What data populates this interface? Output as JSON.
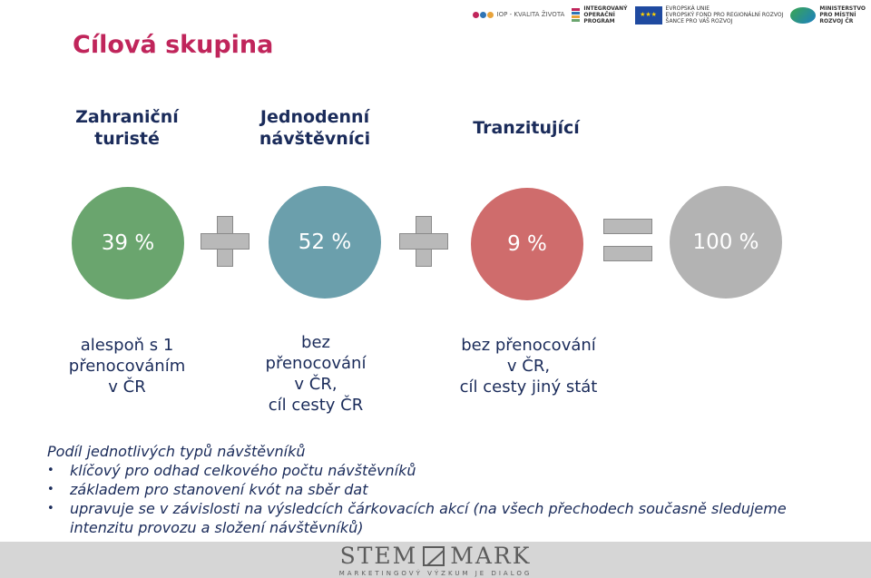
{
  "header_logos": {
    "iop": "IOP - KVALITA ŽIVOTA",
    "iroi": "INTEGROVANÝ\nOPERAČNÍ\nPROGRAM",
    "eu": "EVROPSKÁ UNIE\nEVROPSKÝ FOND PRO REGIONÁLNÍ ROZVOJ\nŠANCE PRO VÁŠ ROZVOJ",
    "mmr": "MINISTERSTVO\nPRO MÍSTNÍ\nROZVOJ ČR"
  },
  "title": "Cílová skupina",
  "columns": [
    {
      "heading": "Zahraniční\nturisté",
      "percent": "39 %",
      "color": "#6aa56e",
      "description": "alespoň s 1\npřenocováním\nv ČR"
    },
    {
      "heading": "Jednodenní\nnávštěvníci",
      "percent": "52 %",
      "color": "#6b9fac",
      "description": "bez\npřenocování\nv ČR,\ncíl cesty ČR"
    },
    {
      "heading": "Tranzitující",
      "percent": "9 %",
      "color": "#cf6c6c",
      "description": "bez přenocování\nv ČR,\ncíl cesty jiný stát"
    }
  ],
  "total": {
    "percent": "100 %",
    "color": "#b3b3b3"
  },
  "notes": {
    "title": "Podíl jednotlivých typů návštěvníků",
    "bullets": [
      "klíčový pro odhad celkového počtu návštěvníků",
      "základem pro stanovení kvót na sběr dat",
      "upravuje se v závislosti na výsledcích čárkovacích akcí (na všech přechodech současně sledujeme intenzitu provozu a složení návštěvníků)"
    ]
  },
  "footer": {
    "brand_left": "STEM",
    "brand_right": "MARK",
    "tagline": "MARKETINGOVÝ VÝZKUM JE DIALOG"
  }
}
